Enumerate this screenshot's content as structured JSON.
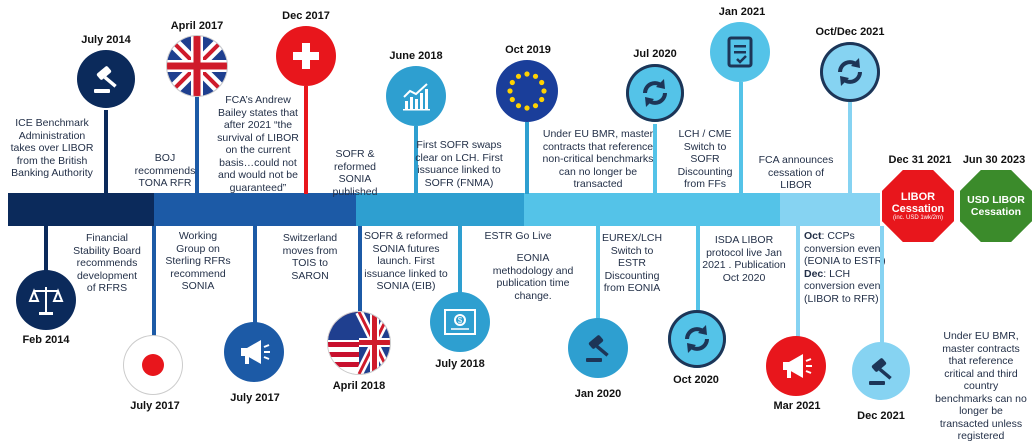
{
  "top": {
    "jul2014": {
      "date": "July 2014",
      "text": "ICE Benchmark Administration takes over LIBOR from the British Banking Authority"
    },
    "apr2017": {
      "date": "April 2017",
      "text": "BOJ recommends TONA RFR"
    },
    "dec2017": {
      "date": "Dec 2017",
      "text": "FCA’s Andrew Bailey states that after 2021 “the survival of LIBOR on the current basis…could not and would not be guaranteed”"
    },
    "jun2018_pub": {
      "text": "SOFR & reformed SONIA published"
    },
    "jun2018": {
      "date": "June 2018",
      "text": "First SOFR swaps clear on LCH. First issuance linked to SOFR (FNMA)"
    },
    "oct2019": {
      "date": "Oct 2019",
      "text": "Under EU BMR, master contracts that reference non-critical benchmarks can no longer be transacted"
    },
    "jul2020": {
      "date": "Jul 2020",
      "text": "LCH / CME Switch to SOFR Discounting from FFs"
    },
    "jan2021": {
      "date": "Jan 2021",
      "text": "FCA announces cessation of LIBOR"
    },
    "octdec2021": {
      "date": "Oct/Dec 2021"
    }
  },
  "bottom": {
    "feb2014": {
      "date": "Feb 2014",
      "text": "Financial Stability Board recommends development of RFRS"
    },
    "jul2017a": {
      "date": "July 2017",
      "text": "Working Group on Sterling RFRs recommend SONIA"
    },
    "jul2017b": {
      "date": "July 2017",
      "text": "Switzerland moves from TOIS to SARON"
    },
    "apr2018": {
      "date": "April 2018",
      "text": "SOFR & reformed SONIA futures launch. First issuance linked to SONIA (EIB)"
    },
    "jul2018": {
      "date": "July 2018"
    },
    "estr": {
      "line1": "ESTR Go Live",
      "line2": "EONIA methodology and publication time change."
    },
    "jan2020": {
      "date": "Jan 2020",
      "text": "EUREX/LCH Switch to ESTR Discounting from EONIA"
    },
    "oct2020": {
      "date": "Oct 2020",
      "text": "ISDA LIBOR protocol live Jan 2021 . Publication Oct 2020"
    },
    "mar2021": {
      "date": "Mar 2021"
    },
    "dec2021": {
      "date": "Dec 2021"
    },
    "octdec_notes": {
      "oct_label": "Oct",
      "oct_text": ": CCPs conversion event (EONIA to ESTR)",
      "dec_label": "Dec",
      "dec_text": ": LCH conversion event (LIBOR to RFR)"
    },
    "final_note": "Under EU BMR, master contracts that reference critical and third country benchmarks can no longer be transacted unless registered"
  },
  "end": {
    "libor": {
      "date": "Dec 31 2021",
      "title1": "LIBOR",
      "title2": "Cessation",
      "sub": "(inc. USD 1wk/2m)"
    },
    "usd": {
      "date": "Jun 30 2023",
      "title1": "USD LIBOR",
      "title2": "Cessation"
    }
  },
  "colors": {
    "navy": "#0b2a5b",
    "blue": "#1c5aa6",
    "teal": "#2e9fd0",
    "cyan": "#54c3e8",
    "light": "#86d3f2",
    "red": "#e8161c",
    "green": "#3b8b2b"
  },
  "icons": [
    "gavel-icon",
    "uk-flag-icon",
    "plus-icon",
    "chart-icon",
    "eu-flag-icon",
    "refresh-icon",
    "document-icon",
    "scales-icon",
    "japan-flag-icon",
    "megaphone-icon",
    "us-uk-flag-icon",
    "certificate-icon"
  ]
}
